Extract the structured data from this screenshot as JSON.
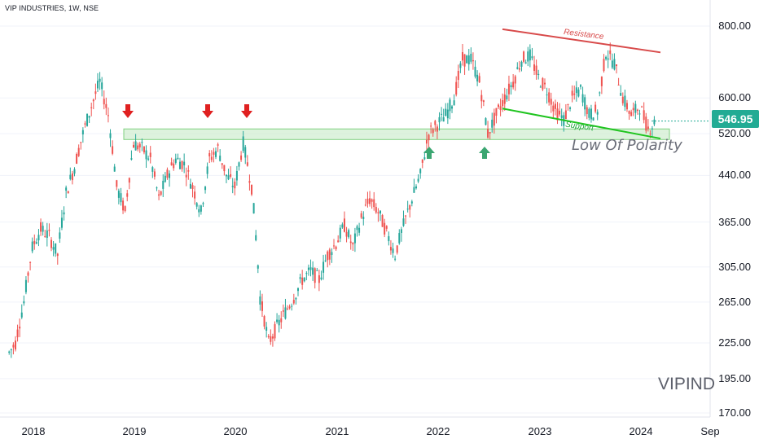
{
  "header": {
    "title": "VIP INDUSTRIES, 1W, NSE"
  },
  "watermark": "VIPIND",
  "price_badge": {
    "value": "546.95",
    "color": "#22ab94"
  },
  "annotations": {
    "resistance": "Resistance",
    "support": "Support",
    "low": "Low Of Polarity"
  },
  "colors": {
    "up": "#26a69a",
    "down": "#ef5350",
    "resistance": "#d84a4a",
    "support": "#1fc41f",
    "zone_fill": "#cfeccf",
    "zone_border": "#7fd07f",
    "arrow_down": "#e02020",
    "arrow_up": "#3ba671"
  },
  "chart_data": {
    "type": "candlestick",
    "title": "VIP INDUSTRIES, 1W, NSE",
    "x_ticks": [
      "2018",
      "2019",
      "2020",
      "2021",
      "2022",
      "2023",
      "2024",
      "Sep"
    ],
    "y_ticks": [
      "800.00",
      "600.00",
      "520.00",
      "440.00",
      "365.00",
      "305.00",
      "265.00",
      "225.00",
      "195.00",
      "170.00"
    ],
    "y_scale": "log",
    "ylim": [
      165,
      840
    ],
    "last_price": 546.95,
    "support_zone": [
      508,
      530
    ],
    "resistance_line": [
      [
        "2022-09",
        790
      ],
      [
        "2024-02",
        720
      ]
    ],
    "support_line": [
      [
        "2022-09",
        575
      ],
      [
        "2024-02",
        510
      ]
    ],
    "signals": {
      "down_arrows": [
        "2018-12",
        "2019-09",
        "2020-01"
      ],
      "up_arrows": [
        "2021-12",
        "2022-06"
      ]
    },
    "series": [
      {
        "name": "VIPIND",
        "x": [
          "2017-10",
          "2017-11",
          "2017-12",
          "2018-01",
          "2018-02",
          "2018-03",
          "2018-04",
          "2018-05",
          "2018-06",
          "2018-07",
          "2018-08",
          "2018-09",
          "2018-10",
          "2018-11",
          "2018-12",
          "2019-01",
          "2019-02",
          "2019-03",
          "2019-04",
          "2019-05",
          "2019-06",
          "2019-07",
          "2019-08",
          "2019-09",
          "2019-10",
          "2019-11",
          "2019-12",
          "2020-01",
          "2020-02",
          "2020-03",
          "2020-04",
          "2020-05",
          "2020-06",
          "2020-07",
          "2020-08",
          "2020-09",
          "2020-10",
          "2020-11",
          "2020-12",
          "2021-01",
          "2021-02",
          "2021-03",
          "2021-04",
          "2021-05",
          "2021-06",
          "2021-07",
          "2021-08",
          "2021-09",
          "2021-10",
          "2021-11",
          "2021-12",
          "2022-01",
          "2022-02",
          "2022-03",
          "2022-04",
          "2022-05",
          "2022-06",
          "2022-07",
          "2022-08",
          "2022-09",
          "2022-10",
          "2022-11",
          "2022-12",
          "2023-01",
          "2023-02",
          "2023-03",
          "2023-04",
          "2023-05",
          "2023-06",
          "2023-07",
          "2023-08",
          "2023-09",
          "2023-10",
          "2023-11",
          "2023-12",
          "2024-01",
          "2024-02"
        ],
        "close": [
          225,
          265,
          330,
          355,
          345,
          320,
          410,
          455,
          520,
          580,
          640,
          560,
          420,
          380,
          500,
          490,
          470,
          400,
          440,
          470,
          460,
          420,
          380,
          470,
          490,
          440,
          420,
          500,
          420,
          270,
          225,
          240,
          255,
          270,
          290,
          300,
          290,
          320,
          335,
          360,
          330,
          370,
          400,
          380,
          350,
          320,
          360,
          400,
          440,
          520,
          540,
          560,
          600,
          700,
          700,
          640,
          520,
          560,
          600,
          640,
          700,
          710,
          650,
          620,
          570,
          550,
          600,
          620,
          560,
          570,
          720,
          690,
          600,
          560,
          580,
          530,
          547
        ]
      }
    ]
  }
}
